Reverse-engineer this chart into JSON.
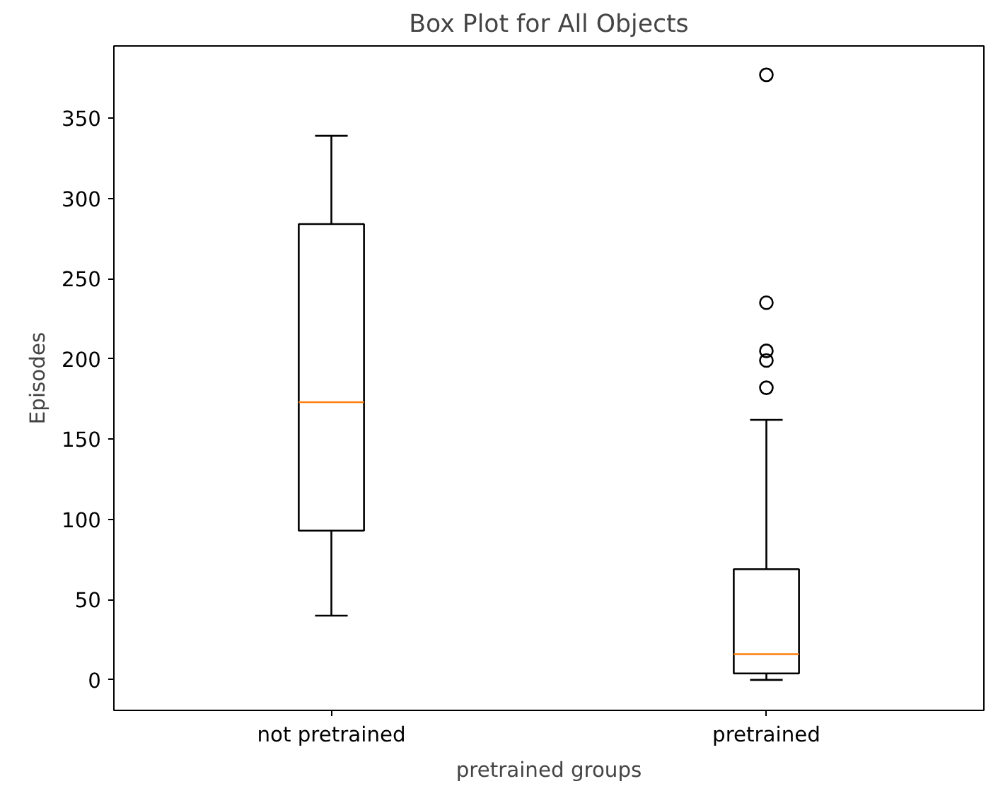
{
  "chart_data": {
    "type": "box",
    "title": "Box Plot for All Objects",
    "xlabel": "pretrained groups",
    "ylabel": "Episodes",
    "categories": [
      "not pretrained",
      "pretrained"
    ],
    "boxes": [
      {
        "low": 40,
        "q1": 93,
        "median": 173,
        "q3": 284,
        "high": 339
      },
      {
        "low": 0,
        "q1": 4,
        "median": 16,
        "q3": 69,
        "high": 162,
        "outliers": [
          377,
          235,
          205,
          199,
          182
        ]
      }
    ],
    "ylim": [
      -19,
      395
    ],
    "yticks": [
      0,
      50,
      100,
      150,
      200,
      250,
      300,
      350
    ]
  }
}
